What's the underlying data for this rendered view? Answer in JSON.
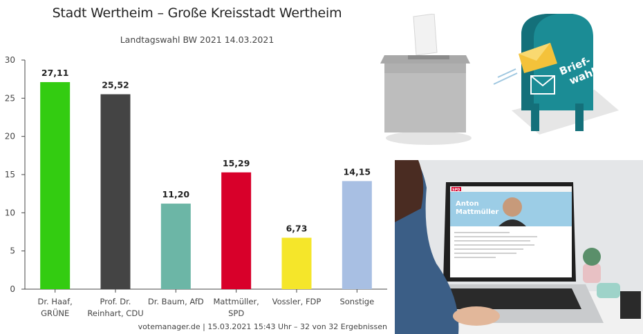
{
  "chart_data": {
    "type": "bar",
    "title": "Stadt Wertheim – Große Kreisstadt Wertheim",
    "subtitle": "Landtagswahl BW 2021 14.03.2021",
    "categories": [
      [
        "Dr. Haaf,",
        "GRÜNE"
      ],
      [
        "Prof. Dr.",
        "Reinhart, CDU"
      ],
      [
        "Dr. Baum, AfD"
      ],
      [
        "Mattmüller,",
        "SPD"
      ],
      [
        "Vossler, FDP"
      ],
      [
        "Sonstige"
      ]
    ],
    "values": [
      27.11,
      25.52,
      11.2,
      15.29,
      6.73,
      14.15
    ],
    "value_labels": [
      "27,11",
      "25,52",
      "11,20",
      "15,29",
      "6,73",
      "14,15"
    ],
    "colors": [
      "#33cc11",
      "#444444",
      "#6cb6a6",
      "#d8002a",
      "#f5e62a",
      "#a8bfe3"
    ],
    "ylim": [
      0,
      30
    ],
    "yticks": [
      0,
      5,
      10,
      15,
      20,
      25,
      30
    ],
    "grid": false,
    "xlabel": "",
    "ylabel": ""
  },
  "footer": {
    "credit": "votemanager.de | 15.03.2021 15:43 Uhr – 32 von 32 Ergebnissen"
  },
  "illustrations": {
    "mailbox_text_1": "Brief-",
    "mailbox_text_2": "wahl",
    "laptop_brand": "SPD",
    "laptop_name_1": "Anton",
    "laptop_name_2": "Mattmüller"
  }
}
